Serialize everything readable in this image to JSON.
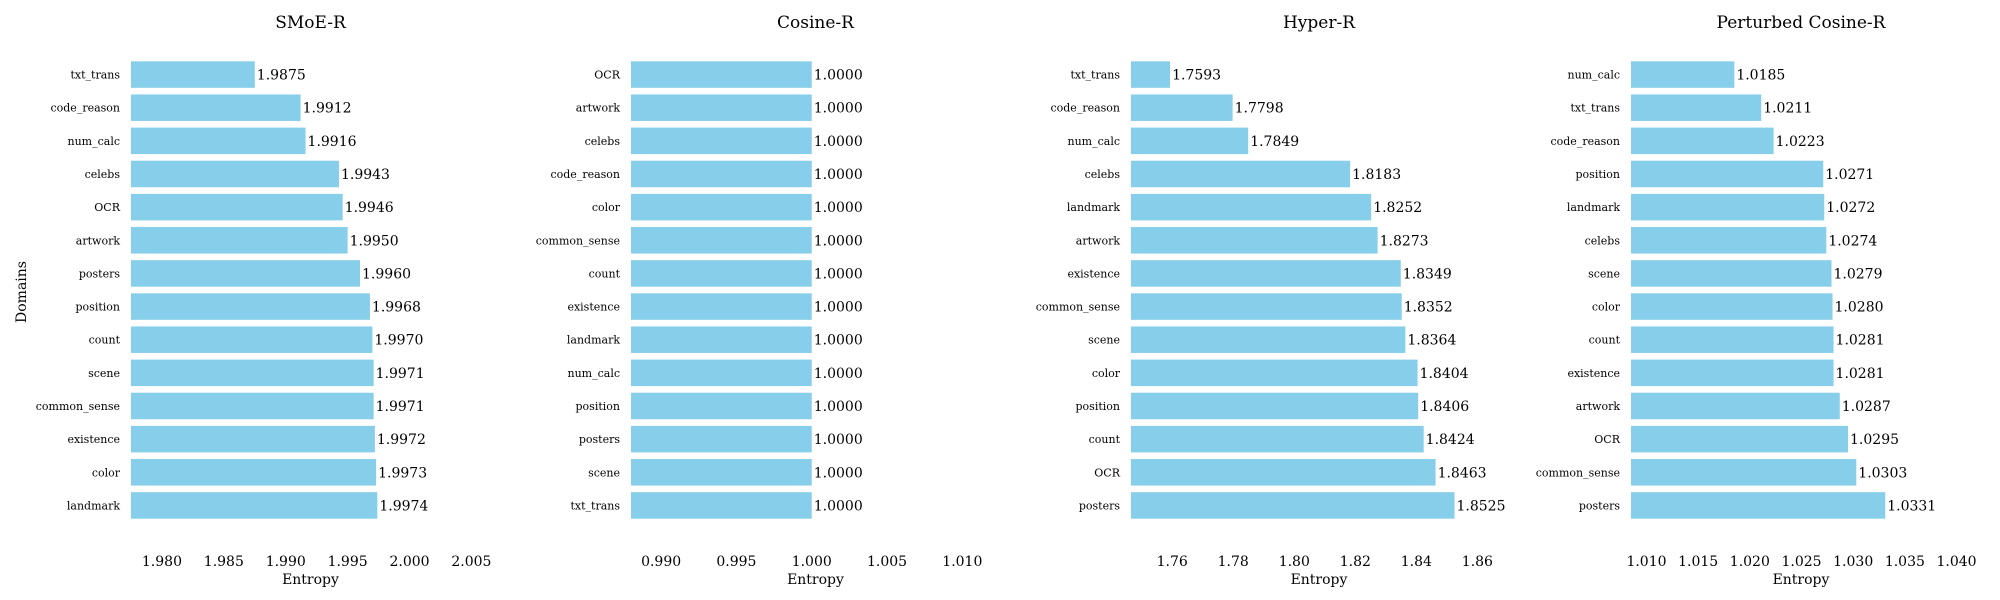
{
  "figure": {
    "ylabel": "Domains"
  },
  "chart_data": [
    {
      "type": "bar",
      "orientation": "horizontal",
      "title": "SMoE-R",
      "xlabel": "Entropy",
      "ylabel": "Domains",
      "bar_color": "#87CEEB",
      "xlim": [
        1.9775,
        2.0065
      ],
      "xticks": [
        1.98,
        1.985,
        1.99,
        1.995,
        2.0,
        2.005
      ],
      "xtick_labels": [
        "1.980",
        "1.985",
        "1.990",
        "1.995",
        "2.000",
        "2.005"
      ],
      "categories": [
        "txt_trans",
        "code_reason",
        "num_calc",
        "celebs",
        "OCR",
        "artwork",
        "posters",
        "position",
        "count",
        "scene",
        "common_sense",
        "existence",
        "color",
        "landmark"
      ],
      "values": [
        1.9875,
        1.9912,
        1.9916,
        1.9943,
        1.9946,
        1.995,
        1.996,
        1.9968,
        1.997,
        1.9971,
        1.9971,
        1.9972,
        1.9973,
        1.9974
      ],
      "value_labels": [
        "1.9875",
        "1.9912",
        "1.9916",
        "1.9943",
        "1.9946",
        "1.9950",
        "1.9960",
        "1.9968",
        "1.9970",
        "1.9971",
        "1.9971",
        "1.9972",
        "1.9973",
        "1.9974"
      ]
    },
    {
      "type": "bar",
      "orientation": "horizontal",
      "title": "Cosine-R",
      "xlabel": "Entropy",
      "bar_color": "#87CEEB",
      "xlim": [
        0.988,
        1.0125
      ],
      "xticks": [
        0.99,
        0.995,
        1.0,
        1.005,
        1.01
      ],
      "xtick_labels": [
        "0.990",
        "0.995",
        "1.000",
        "1.005",
        "1.010"
      ],
      "categories": [
        "OCR",
        "artwork",
        "celebs",
        "code_reason",
        "color",
        "common_sense",
        "count",
        "existence",
        "landmark",
        "num_calc",
        "position",
        "posters",
        "scene",
        "txt_trans"
      ],
      "values": [
        1.0,
        1.0,
        1.0,
        1.0,
        1.0,
        1.0,
        1.0,
        1.0,
        1.0,
        1.0,
        1.0,
        1.0,
        1.0,
        1.0
      ],
      "value_labels": [
        "1.0000",
        "1.0000",
        "1.0000",
        "1.0000",
        "1.0000",
        "1.0000",
        "1.0000",
        "1.0000",
        "1.0000",
        "1.0000",
        "1.0000",
        "1.0000",
        "1.0000",
        "1.0000"
      ]
    },
    {
      "type": "bar",
      "orientation": "horizontal",
      "title": "Hyper-R",
      "xlabel": "Entropy",
      "bar_color": "#87CEEB",
      "xlim": [
        1.7465,
        1.8697
      ],
      "xticks": [
        1.76,
        1.78,
        1.8,
        1.82,
        1.84,
        1.86
      ],
      "xtick_labels": [
        "1.76",
        "1.78",
        "1.80",
        "1.82",
        "1.84",
        "1.86"
      ],
      "categories": [
        "txt_trans",
        "code_reason",
        "num_calc",
        "celebs",
        "landmark",
        "artwork",
        "existence",
        "common_sense",
        "scene",
        "color",
        "position",
        "count",
        "OCR",
        "posters"
      ],
      "values": [
        1.7593,
        1.7798,
        1.7849,
        1.8183,
        1.8252,
        1.8273,
        1.8349,
        1.8352,
        1.8364,
        1.8404,
        1.8406,
        1.8424,
        1.8463,
        1.8525
      ],
      "value_labels": [
        "1.7593",
        "1.7798",
        "1.7849",
        "1.8183",
        "1.8252",
        "1.8273",
        "1.8349",
        "1.8352",
        "1.8364",
        "1.8404",
        "1.8406",
        "1.8424",
        "1.8463",
        "1.8525"
      ]
    },
    {
      "type": "bar",
      "orientation": "horizontal",
      "title": "Perturbed Cosine-R",
      "xlabel": "Entropy",
      "bar_color": "#87CEEB",
      "xlim": [
        1.0085,
        1.0414
      ],
      "xticks": [
        1.01,
        1.015,
        1.02,
        1.025,
        1.03,
        1.035,
        1.04
      ],
      "xtick_labels": [
        "1.010",
        "1.015",
        "1.020",
        "1.025",
        "1.030",
        "1.035",
        "1.040"
      ],
      "categories": [
        "num_calc",
        "txt_trans",
        "code_reason",
        "position",
        "landmark",
        "celebs",
        "scene",
        "color",
        "count",
        "existence",
        "artwork",
        "OCR",
        "common_sense",
        "posters"
      ],
      "values": [
        1.0185,
        1.0211,
        1.0223,
        1.0271,
        1.0272,
        1.0274,
        1.0279,
        1.028,
        1.0281,
        1.0281,
        1.0287,
        1.0295,
        1.0303,
        1.0331
      ],
      "value_labels": [
        "1.0185",
        "1.0211",
        "1.0223",
        "1.0271",
        "1.0272",
        "1.0274",
        "1.0279",
        "1.0280",
        "1.0281",
        "1.0281",
        "1.0287",
        "1.0295",
        "1.0303",
        "1.0331"
      ]
    }
  ]
}
